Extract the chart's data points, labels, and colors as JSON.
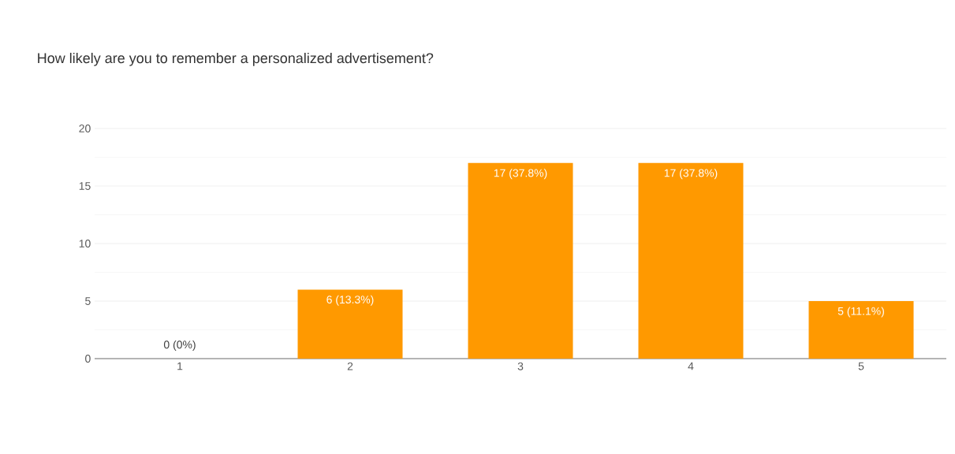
{
  "chart_data": {
    "type": "bar",
    "title": "How likely are you to remember a personalized advertisement?",
    "categories": [
      "1",
      "2",
      "3",
      "4",
      "5"
    ],
    "values": [
      0,
      6,
      17,
      17,
      5
    ],
    "value_labels": [
      "0 (0%)",
      "6 (13.3%)",
      "17 (37.8%)",
      "17 (37.8%)",
      "5 (11.1%)"
    ],
    "color": "#ff9900",
    "ylim": [
      0,
      20
    ],
    "yticks": [
      0,
      5,
      10,
      15,
      20
    ],
    "grid": "y"
  }
}
